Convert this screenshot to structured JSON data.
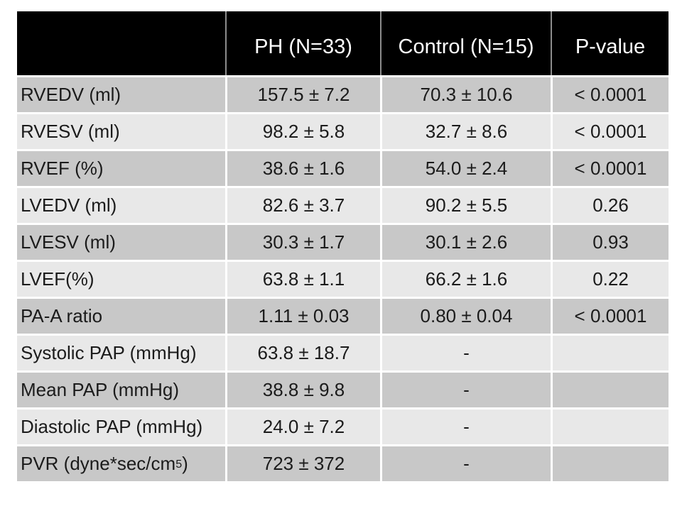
{
  "chart_data": {
    "type": "table",
    "columns": [
      "",
      "PH (N=33)",
      "Control (N=15)",
      "P-value"
    ],
    "rows": [
      {
        "label": "RVEDV (ml)",
        "ph": "157.5 ± 7.2",
        "control": "70.3 ± 10.6",
        "p": "< 0.0001"
      },
      {
        "label": "RVESV (ml)",
        "ph": "98.2 ± 5.8",
        "control": "32.7 ± 8.6",
        "p": "< 0.0001"
      },
      {
        "label": "RVEF (%)",
        "ph": "38.6 ± 1.6",
        "control": "54.0 ± 2.4",
        "p": "< 0.0001"
      },
      {
        "label": "LVEDV (ml)",
        "ph": "82.6 ± 3.7",
        "control": "90.2 ± 5.5",
        "p": "0.26"
      },
      {
        "label": "LVESV (ml)",
        "ph": "30.3 ± 1.7",
        "control": "30.1 ± 2.6",
        "p": "0.93"
      },
      {
        "label": "LVEF(%)",
        "ph": "63.8 ± 1.1",
        "control": "66.2 ± 1.6",
        "p": "0.22"
      },
      {
        "label": "PA-A ratio",
        "ph": "1.11 ± 0.03",
        "control": "0.80 ± 0.04",
        "p": "< 0.0001"
      },
      {
        "label": "Systolic PAP (mmHg)",
        "ph": "63.8 ± 18.7",
        "control": "-",
        "p": ""
      },
      {
        "label": "Mean PAP (mmHg)",
        "ph": "38.8 ± 9.8",
        "control": "-",
        "p": ""
      },
      {
        "label": "Diastolic PAP (mmHg)",
        "ph": "24.0 ± 7.2",
        "control": "-",
        "p": ""
      },
      {
        "label_pre": "PVR (dyne*sec/cm",
        "label_sup": "5",
        "label_post": ")",
        "ph": "723 ± 372",
        "control": "-",
        "p": ""
      }
    ]
  },
  "theme": {
    "slide_bg": "#ffffff",
    "header_bg": "#000000",
    "header_text": "#ffffff",
    "header_divider": "#8c8c8c",
    "band_dark": "#c8c8c8",
    "band_light": "#e8e8e8",
    "body_text": "#1b1b1b",
    "separator": "#ffffff"
  }
}
